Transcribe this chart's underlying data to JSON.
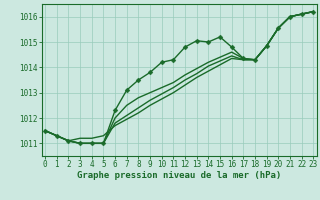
{
  "title": "Graphe pression niveau de la mer (hPa)",
  "xlabel_hours": [
    0,
    1,
    2,
    3,
    4,
    5,
    6,
    7,
    8,
    9,
    10,
    11,
    12,
    13,
    14,
    15,
    16,
    17,
    18,
    19,
    20,
    21,
    22,
    23
  ],
  "ylim": [
    1010.5,
    1016.5
  ],
  "yticks": [
    1011,
    1012,
    1013,
    1014,
    1015,
    1016
  ],
  "xlim": [
    -0.3,
    23.3
  ],
  "bg_color": "#cce8e0",
  "grid_color": "#99ccbb",
  "line_color": "#1a6b2a",
  "line_width": 1.0,
  "marker_size": 2.5,
  "tick_fontsize": 5.5,
  "title_fontsize": 6.5,
  "series_main": [
    1011.5,
    1011.3,
    1011.1,
    1011.0,
    1011.0,
    1011.0,
    1012.3,
    1013.1,
    1013.5,
    1013.8,
    1014.2,
    1014.3,
    1014.8,
    1015.05,
    1015.0,
    1015.2,
    1014.8,
    1014.35,
    1014.3,
    1014.85,
    1015.55,
    1016.0,
    1016.1,
    1016.2
  ],
  "series_b": [
    1011.5,
    1011.3,
    1011.1,
    1011.0,
    1011.0,
    1011.0,
    1012.0,
    1012.5,
    1012.8,
    1013.0,
    1013.2,
    1013.4,
    1013.7,
    1013.95,
    1014.2,
    1014.4,
    1014.6,
    1014.35,
    1014.3,
    1014.85,
    1015.55,
    1016.0,
    1016.1,
    1016.2
  ],
  "series_c": [
    1011.5,
    1011.3,
    1011.1,
    1011.0,
    1011.0,
    1011.0,
    1011.8,
    1012.1,
    1012.4,
    1012.7,
    1012.95,
    1013.2,
    1013.5,
    1013.75,
    1014.05,
    1014.25,
    1014.45,
    1014.3,
    1014.3,
    1014.85,
    1015.55,
    1016.0,
    1016.1,
    1016.2
  ],
  "series_d": [
    1011.5,
    1011.3,
    1011.1,
    1011.2,
    1011.2,
    1011.3,
    1011.7,
    1011.95,
    1012.2,
    1012.5,
    1012.75,
    1013.0,
    1013.3,
    1013.6,
    1013.85,
    1014.1,
    1014.35,
    1014.3,
    1014.3,
    1014.85,
    1015.55,
    1016.0,
    1016.1,
    1016.2
  ]
}
